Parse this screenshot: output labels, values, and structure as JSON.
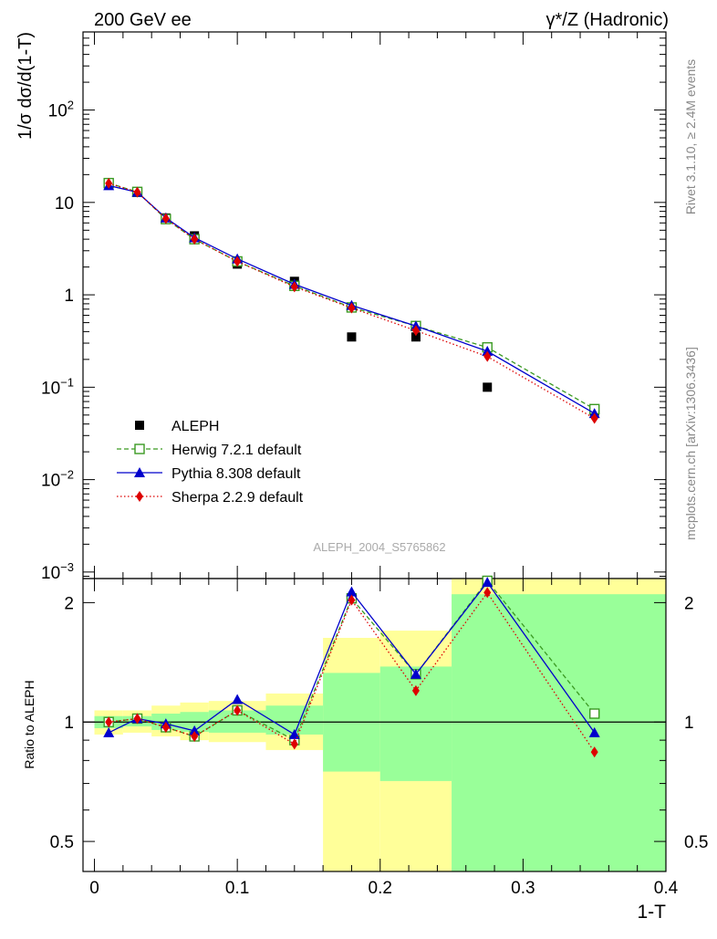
{
  "header": {
    "left_title": "200 GeV ee",
    "right_title": "γ*/Z (Hadronic)"
  },
  "side_text": {
    "rivet": "Rivet 3.1.10, ≥ 2.4M events",
    "mcplots": "mcplots.cern.ch [arXiv:1306.3436]"
  },
  "watermark": "ALEPH_2004_S5765862",
  "chart_data": [
    {
      "type": "scatter",
      "panel": "main",
      "yscale": "log",
      "ylabel": "1/σ  dσ/d(1-T)",
      "xlim": [
        -0.008,
        0.4
      ],
      "ylim": [
        0.00085,
        700
      ],
      "y_ticks": [
        {
          "value": 0.001,
          "base": "10",
          "exp": "−3"
        },
        {
          "value": 0.01,
          "base": "10",
          "exp": "−2"
        },
        {
          "value": 0.1,
          "base": "10",
          "exp": "−1"
        },
        {
          "value": 1,
          "base": "1",
          "exp": ""
        },
        {
          "value": 10,
          "base": "10",
          "exp": ""
        },
        {
          "value": 100,
          "base": "10",
          "exp": "2"
        }
      ],
      "legend_position": "center-left",
      "series": [
        {
          "name": "ALEPH",
          "style": "data",
          "color": "#000000",
          "x": [
            0.01,
            0.03,
            0.05,
            0.07,
            0.1,
            0.14,
            0.18,
            0.225,
            0.275,
            0.35
          ],
          "y": [
            16.0,
            12.8,
            6.8,
            4.35,
            2.15,
            1.4,
            0.35,
            0.35,
            0.1,
            0.055
          ]
        },
        {
          "name": "Herwig 7.2.1 default",
          "style": "open-square-dashed",
          "color": "#3a9a22",
          "x": [
            0.01,
            0.03,
            0.05,
            0.07,
            0.1,
            0.14,
            0.18,
            0.225,
            0.275,
            0.35
          ],
          "y": [
            16.2,
            13.0,
            6.6,
            4.0,
            2.3,
            1.25,
            0.73,
            0.46,
            0.27,
            0.058
          ]
        },
        {
          "name": "Pythia 8.308 default",
          "style": "filled-triangle-solid",
          "color": "#0000cc",
          "x": [
            0.01,
            0.03,
            0.05,
            0.07,
            0.1,
            0.14,
            0.18,
            0.225,
            0.275,
            0.35
          ],
          "y": [
            15.2,
            12.9,
            6.8,
            4.15,
            2.45,
            1.3,
            0.77,
            0.46,
            0.245,
            0.052
          ]
        },
        {
          "name": "Sherpa 2.2.9 default",
          "style": "filled-diamond-dotted",
          "color": "#dd0000",
          "x": [
            0.01,
            0.03,
            0.05,
            0.07,
            0.1,
            0.14,
            0.18,
            0.225,
            0.275,
            0.35
          ],
          "y": [
            16.1,
            12.9,
            6.7,
            4.0,
            2.3,
            1.22,
            0.72,
            0.41,
            0.215,
            0.046
          ]
        }
      ]
    },
    {
      "type": "line",
      "panel": "ratio",
      "yscale": "log",
      "ylabel": "Ratio to ALEPH",
      "xlabel": "1-T",
      "xlim": [
        -0.008,
        0.4
      ],
      "ylim": [
        0.42,
        2.3
      ],
      "x_ticks": [
        0,
        0.1,
        0.2,
        0.3,
        0.4
      ],
      "y_ticks": [
        0.5,
        1,
        2
      ],
      "reference_line": 1,
      "bands": [
        {
          "x0": 0.0,
          "x1": 0.02,
          "yellow": [
            0.93,
            1.07
          ],
          "green": [
            0.965,
            1.035
          ]
        },
        {
          "x0": 0.02,
          "x1": 0.04,
          "yellow": [
            0.94,
            1.07
          ],
          "green": [
            0.975,
            1.035
          ]
        },
        {
          "x0": 0.04,
          "x1": 0.06,
          "yellow": [
            0.92,
            1.1
          ],
          "green": [
            0.955,
            1.05
          ]
        },
        {
          "x0": 0.06,
          "x1": 0.08,
          "yellow": [
            0.9,
            1.12
          ],
          "green": [
            0.945,
            1.06
          ]
        },
        {
          "x0": 0.08,
          "x1": 0.12,
          "yellow": [
            0.89,
            1.13
          ],
          "green": [
            0.94,
            1.07
          ]
        },
        {
          "x0": 0.12,
          "x1": 0.16,
          "yellow": [
            0.85,
            1.18
          ],
          "green": [
            0.93,
            1.1
          ]
        },
        {
          "x0": 0.16,
          "x1": 0.2,
          "yellow": [
            0.37,
            1.63
          ],
          "green": [
            0.75,
            1.33
          ]
        },
        {
          "x0": 0.2,
          "x1": 0.25,
          "yellow": [
            0.36,
            1.7
          ],
          "green": [
            0.71,
            1.38
          ]
        },
        {
          "x0": 0.25,
          "x1": 0.4,
          "yellow": [
            0.3,
            2.55
          ],
          "green": [
            0.3,
            2.1
          ]
        }
      ],
      "series": [
        {
          "name": "Herwig 7.2.1 default",
          "style": "open-square-dashed",
          "color": "#3a9a22",
          "x": [
            0.01,
            0.03,
            0.05,
            0.07,
            0.1,
            0.14,
            0.18,
            0.225,
            0.275,
            0.35
          ],
          "y": [
            1.0,
            1.02,
            0.97,
            0.92,
            1.07,
            0.9,
            2.05,
            1.32,
            2.27,
            1.05
          ]
        },
        {
          "name": "Pythia 8.308 default",
          "style": "filled-triangle-solid",
          "color": "#0000cc",
          "x": [
            0.01,
            0.03,
            0.05,
            0.07,
            0.1,
            0.14,
            0.18,
            0.225,
            0.275,
            0.35
          ],
          "y": [
            0.94,
            1.02,
            0.99,
            0.95,
            1.14,
            0.93,
            2.13,
            1.32,
            2.25,
            0.94
          ]
        },
        {
          "name": "Sherpa 2.2.9 default",
          "style": "filled-diamond-dotted",
          "color": "#dd0000",
          "x": [
            0.01,
            0.03,
            0.05,
            0.07,
            0.1,
            0.14,
            0.18,
            0.225,
            0.275,
            0.35
          ],
          "y": [
            1.0,
            1.02,
            0.97,
            0.92,
            1.07,
            0.88,
            2.03,
            1.2,
            2.12,
            0.84
          ]
        }
      ]
    }
  ]
}
